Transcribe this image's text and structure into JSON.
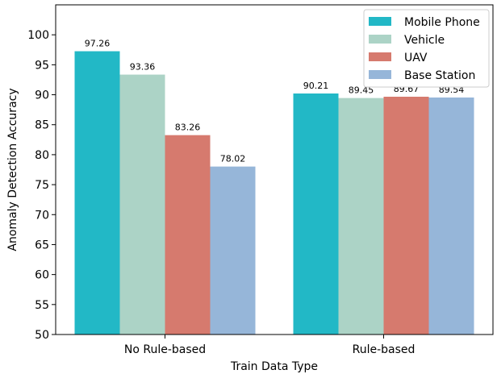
{
  "chart_data": {
    "type": "bar",
    "categories": [
      "No Rule-based",
      "Rule-based"
    ],
    "series": [
      {
        "name": "Mobile Phone",
        "values": [
          97.26,
          90.21
        ],
        "labels": [
          "97.26",
          "90.21"
        ],
        "color": "#22b8c6"
      },
      {
        "name": "Vehicle",
        "values": [
          93.36,
          89.45
        ],
        "labels": [
          "93.36",
          "89.45"
        ],
        "color": "#acd3c6"
      },
      {
        "name": "UAV",
        "values": [
          83.26,
          89.67
        ],
        "labels": [
          "83.26",
          "89.67"
        ],
        "color": "#d67a6e"
      },
      {
        "name": "Base Station",
        "values": [
          78.02,
          89.54
        ],
        "labels": [
          "78.02",
          "89.54"
        ],
        "color": "#96b6d9"
      }
    ],
    "xlabel": "Train Data Type",
    "ylabel": "Anomaly Detection Accuracy",
    "ylim": [
      50,
      105
    ],
    "yticks": [
      50,
      55,
      60,
      65,
      70,
      75,
      80,
      85,
      90,
      95,
      100
    ],
    "grid": false,
    "legend_position": "top-right"
  }
}
